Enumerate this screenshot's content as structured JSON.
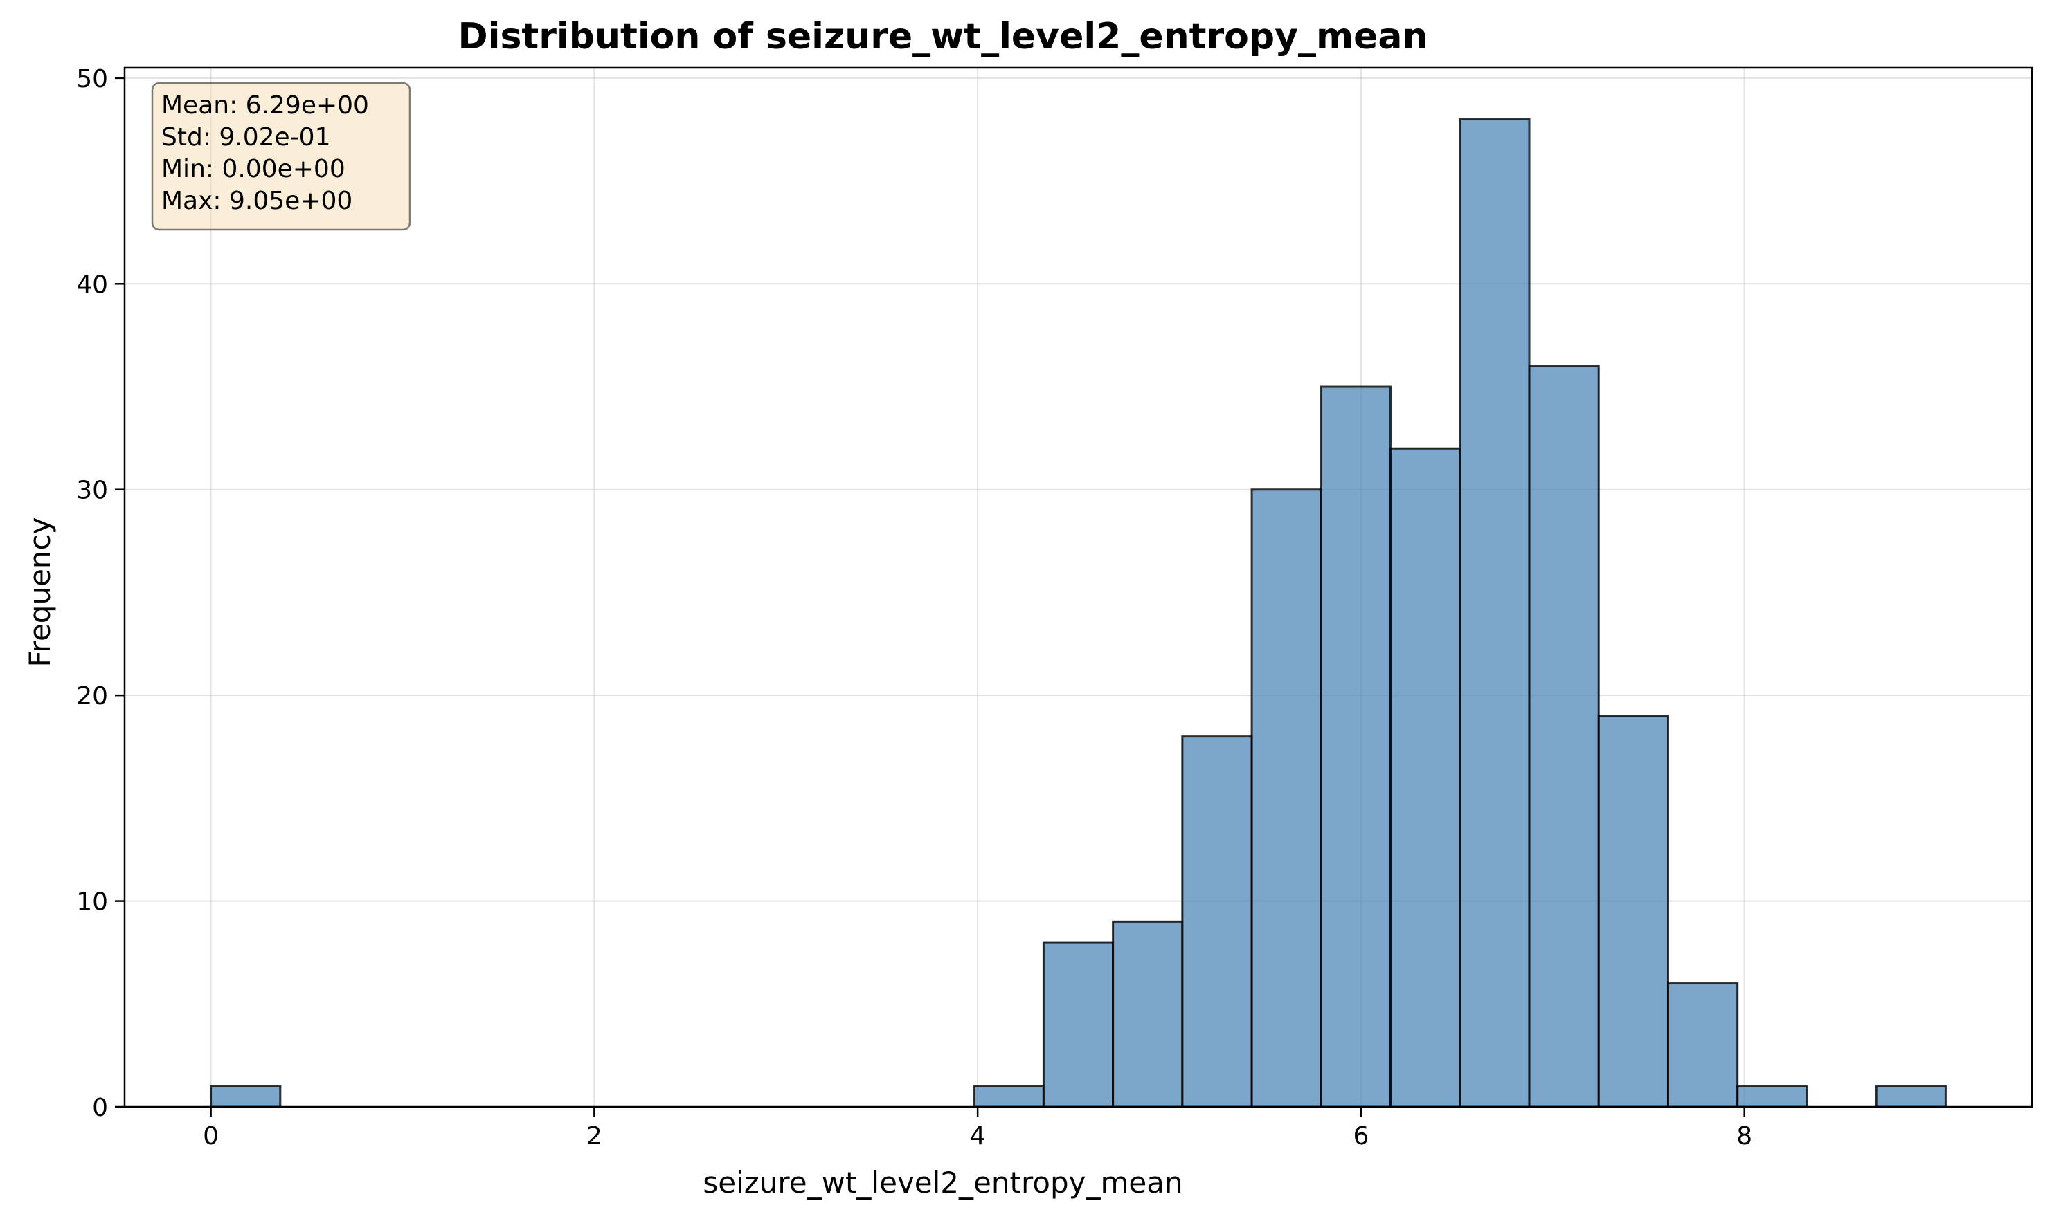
{
  "chart_data": {
    "type": "bar",
    "title": "Distribution of seizure_wt_level2_entropy_mean",
    "xlabel": "seizure_wt_level2_entropy_mean",
    "ylabel": "Frequency",
    "xlim": [
      -0.45,
      9.5
    ],
    "ylim": [
      0,
      50.5
    ],
    "xticks": [
      0,
      2,
      4,
      6,
      8
    ],
    "yticks": [
      0,
      10,
      20,
      30,
      40,
      50
    ],
    "grid": true,
    "bin_start": 0.0,
    "bin_width": 0.362,
    "values": [
      1,
      0,
      0,
      0,
      0,
      0,
      0,
      0,
      0,
      0,
      0,
      1,
      8,
      9,
      18,
      30,
      35,
      32,
      48,
      36,
      19,
      6,
      1,
      0,
      1
    ],
    "colors": {
      "bar_fill": "#4682b4",
      "bar_edge": "#000000",
      "stats_box_fill": "#f5deb3",
      "stats_box_edge": "#000000"
    },
    "stats_box": {
      "placement": "top-left",
      "lines": [
        "Mean: 6.29e+00",
        "Std: 9.02e-01",
        "Min: 0.00e+00",
        "Max: 9.05e+00"
      ]
    }
  }
}
